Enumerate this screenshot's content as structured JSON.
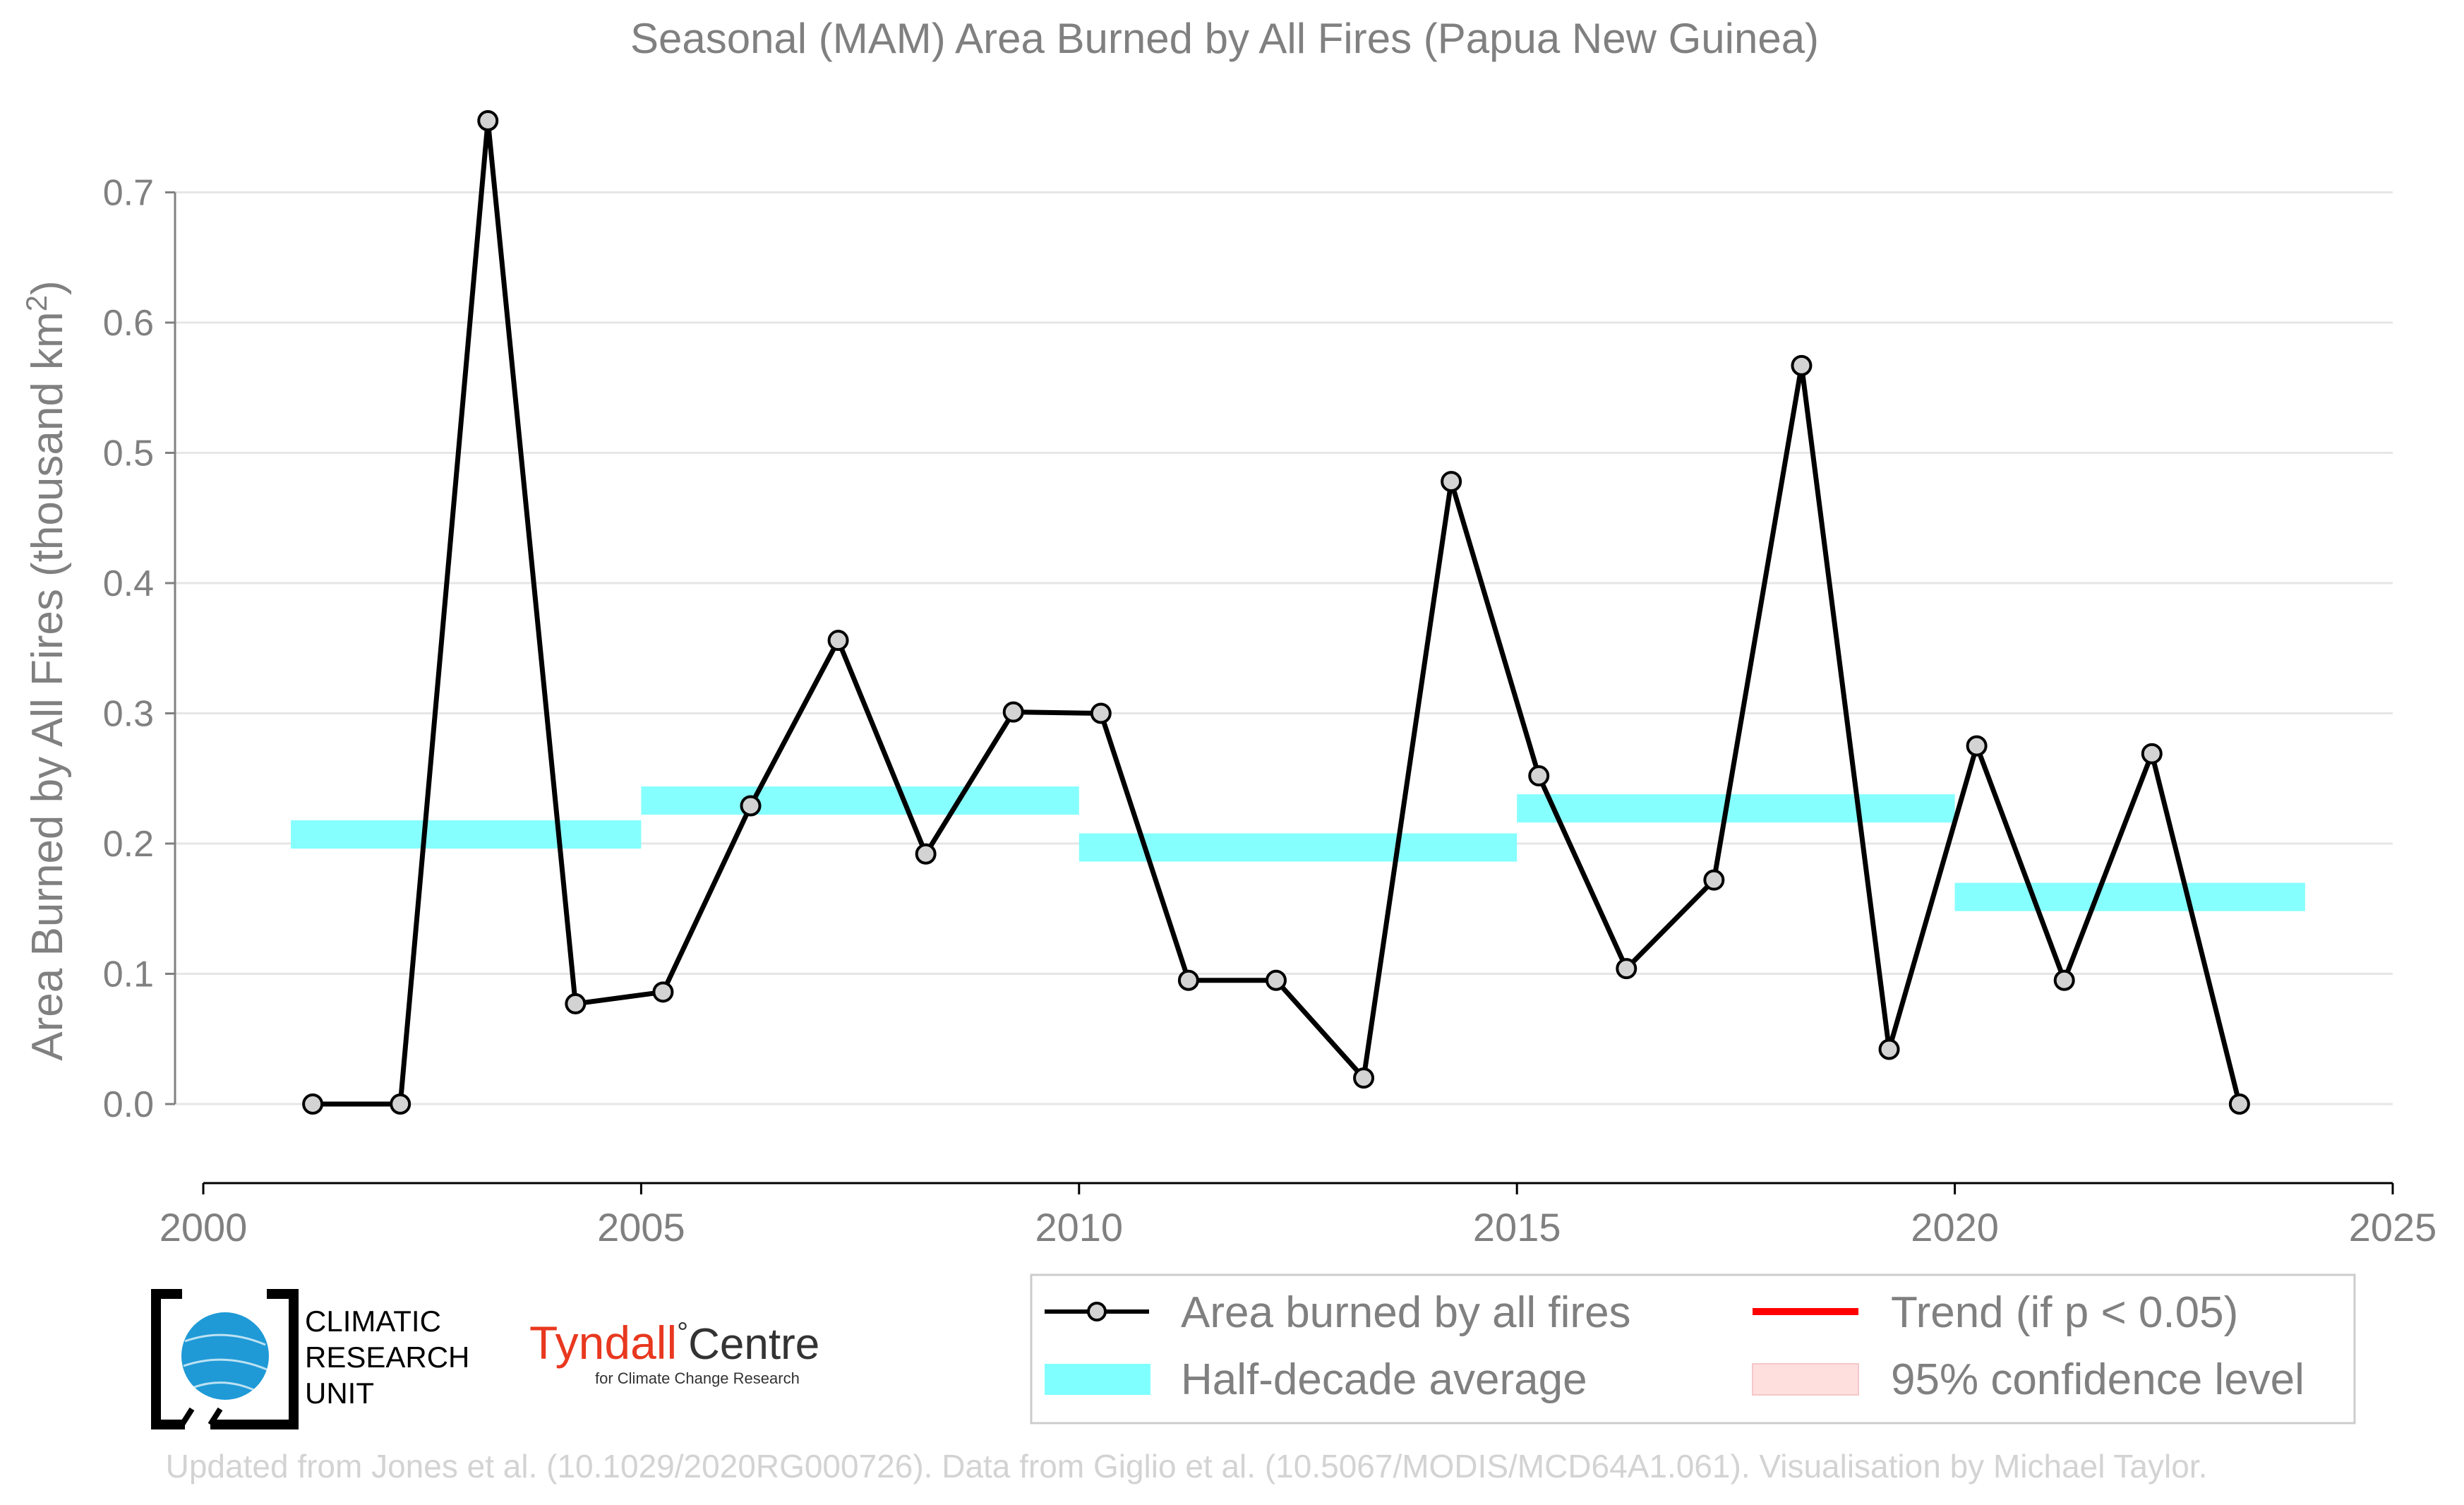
{
  "chart_data": {
    "type": "line",
    "title": "Seasonal (MAM) Area Burned by All Fires (Papua New Guinea)",
    "ylabel": "Area Burned by All Fires (thousand km",
    "ylabel_sup": "2",
    "ylabel_close": ")",
    "xlim": [
      2000,
      2025
    ],
    "ylim": [
      -0.06,
      0.77
    ],
    "x_ticks": [
      2000,
      2005,
      2010,
      2015,
      2020,
      2025
    ],
    "y_ticks": [
      0.0,
      0.1,
      0.2,
      0.3,
      0.4,
      0.5,
      0.6,
      0.7
    ],
    "y_tick_labels": [
      "0.0",
      "0.1",
      "0.2",
      "0.3",
      "0.4",
      "0.5",
      "0.6",
      "0.7"
    ],
    "grid": "horizontal",
    "legend_position": "bottom-right",
    "series": [
      {
        "name": "Area burned by all fires",
        "color": "#000000",
        "marker_fill": "#d3d3d3",
        "x": [
          2001.25,
          2002.25,
          2003.25,
          2004.25,
          2005.25,
          2006.25,
          2007.25,
          2008.25,
          2009.25,
          2010.25,
          2011.25,
          2012.25,
          2013.25,
          2014.25,
          2015.25,
          2016.25,
          2017.25,
          2018.25,
          2019.25,
          2020.25,
          2021.25,
          2022.25,
          2023.25
        ],
        "values": [
          0.0,
          0.0,
          0.755,
          0.077,
          0.086,
          0.229,
          0.356,
          0.192,
          0.301,
          0.3,
          0.095,
          0.095,
          0.02,
          0.478,
          0.252,
          0.104,
          0.172,
          0.567,
          0.042,
          0.275,
          0.095,
          0.269,
          0.0
        ]
      }
    ],
    "half_decade_average": {
      "name": "Half-decade average",
      "color": "#7fffff",
      "segments": [
        {
          "x0": 2001,
          "x1": 2005,
          "value": 0.207
        },
        {
          "x0": 2005,
          "x1": 2010,
          "value": 0.233
        },
        {
          "x0": 2010,
          "x1": 2015,
          "value": 0.197
        },
        {
          "x0": 2015,
          "x1": 2020,
          "value": 0.227
        },
        {
          "x0": 2020,
          "x1": 2024,
          "value": 0.159
        }
      ]
    },
    "legend": [
      {
        "label": "Area burned by all fires",
        "kind": "line-marker",
        "color": "#000000"
      },
      {
        "label": "Trend (if p < 0.05)",
        "kind": "line",
        "color": "#ff0000"
      },
      {
        "label": "Half-decade average",
        "kind": "band",
        "color": "#7fffff"
      },
      {
        "label": "95% confidence level",
        "kind": "band",
        "color": "#ffdede"
      }
    ]
  },
  "logos": {
    "cru_lines": [
      "CLIMATIC",
      "RESEARCH",
      "UNIT"
    ],
    "tyndall_main": "Tyndall",
    "tyndall_degree": "°",
    "tyndall_centre": "Centre",
    "tyndall_sub": "for Climate Change Research"
  },
  "credit": "Updated from Jones et al. (10.1029/2020RG000726). Data from Giglio et al. (10.5067/MODIS/MCD64A1.061). Visualisation by Michael Taylor."
}
